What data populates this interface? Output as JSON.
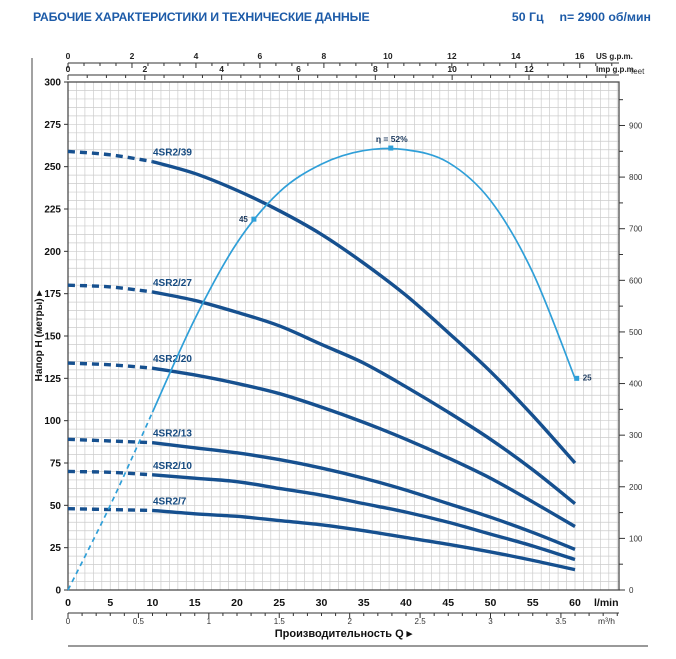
{
  "colors": {
    "title_blue": "#1d5ba8",
    "curve_navy": "#16508f",
    "efficiency_blue": "#2f9fd8",
    "grid": "#cccccc",
    "border": "#4d4d4d",
    "label_navy": "#154a80",
    "marker_label": "#1c3a5e",
    "axis_text": "#222222"
  },
  "header": {
    "title": "РАБОЧИЕ ХАРАКТЕРИСТИКИ И ТЕХНИЧЕСКИЕ ДАННЫЕ",
    "frequency": "50 Гц",
    "speed": "n= 2900 об/мин"
  },
  "chart_data": {
    "type": "line",
    "title": "",
    "x_unit": "l/min",
    "x_lmin": [
      0,
      5,
      10,
      15,
      20,
      25,
      30,
      35,
      40,
      45,
      50,
      55,
      60
    ],
    "ylabel": "Напор H (метры)",
    "xlabel": "Производительность Q",
    "ylim": [
      0,
      300
    ],
    "xlim_lmin": [
      0,
      65
    ],
    "grid": "on",
    "series": [
      {
        "name": "4SR2/39",
        "values": [
          259,
          257,
          253,
          246,
          236,
          224,
          210,
          193,
          174,
          152,
          129,
          103,
          75
        ]
      },
      {
        "name": "4SR2/27",
        "values": [
          180,
          179,
          176,
          171,
          164,
          156,
          145,
          134,
          120,
          105,
          89,
          71,
          51
        ]
      },
      {
        "name": "4SR2/20",
        "values": [
          134,
          133,
          131,
          127,
          122,
          116,
          108,
          99,
          89,
          78,
          66,
          52,
          37.5
        ]
      },
      {
        "name": "4SR2/13",
        "values": [
          89,
          88,
          87,
          84,
          81,
          77,
          72,
          66,
          59,
          51,
          43,
          34,
          24
        ]
      },
      {
        "name": "4SR2/10",
        "values": [
          70,
          69.5,
          68,
          66,
          64,
          60,
          56,
          51,
          46,
          40,
          33,
          26,
          18
        ]
      },
      {
        "name": "4SR2/7",
        "values": [
          48,
          47.5,
          47,
          45,
          43.5,
          41,
          38.5,
          35,
          31,
          27,
          22.5,
          17.5,
          12
        ]
      }
    ],
    "efficiency": {
      "name": "η",
      "unit": "%",
      "values": [
        0,
        10,
        21,
        32,
        41,
        47,
        50.3,
        51.9,
        52,
        50.5,
        46,
        37.5,
        25
      ],
      "markers": [
        {
          "label": "45",
          "q": 22,
          "eta": 43.8,
          "side": "left"
        },
        {
          "label": "η = 52%",
          "q": 38.2,
          "eta": 52.2,
          "side": "top"
        },
        {
          "label": "25",
          "q": 60.2,
          "eta": 25,
          "side": "right"
        }
      ]
    },
    "axes": {
      "left": {
        "title": "Напор H (метры)",
        "arrow": "▸",
        "ticks": [
          0,
          25,
          50,
          75,
          100,
          125,
          150,
          175,
          200,
          225,
          250,
          275,
          300
        ]
      },
      "right": {
        "unit": "feet",
        "label_step": 100,
        "minor_step": 50,
        "max": 950,
        "labeled_max": 900
      },
      "top_us": {
        "unit": "US g.p.m.",
        "ticks": [
          0,
          2,
          4,
          6,
          8,
          10,
          12,
          14,
          16
        ],
        "minor_step": 0.5,
        "lmin_per_unit": 3.78541,
        "max": 17
      },
      "top_imp": {
        "unit": "Imp g.p.m.",
        "ticks": [
          0,
          2,
          4,
          6,
          8,
          10,
          12
        ],
        "minor_step": 0.5,
        "lmin_per_unit": 4.54609,
        "max": 14
      },
      "bottom_lmin": {
        "unit": "l/min",
        "ticks": [
          0,
          5,
          10,
          15,
          20,
          25,
          30,
          35,
          40,
          45,
          50,
          55,
          60
        ]
      },
      "bottom_m3h": {
        "unit": "m³/h",
        "ticks": [
          0,
          0.5,
          1,
          1.5,
          2,
          2.5,
          3,
          3.5
        ],
        "minor_step": 0.1,
        "lmin_per_unit": 16.6667,
        "max": 3.9
      },
      "x_title": "Производительность Q",
      "x_arrow": "▸"
    }
  }
}
